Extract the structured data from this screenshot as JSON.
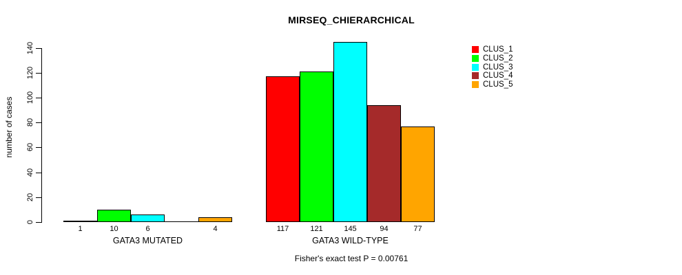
{
  "chart_data": {
    "type": "bar",
    "title": "MIRSEQ_CHIERARCHICAL",
    "ylabel": "number of cases",
    "xlabel": "",
    "categories": [
      "GATA3 MUTATED",
      "GATA3 WILD-TYPE"
    ],
    "series": [
      {
        "name": "CLUS_1",
        "color": "#FF0000",
        "values": [
          1,
          117
        ]
      },
      {
        "name": "CLUS_2",
        "color": "#00FF00",
        "values": [
          10,
          121
        ]
      },
      {
        "name": "CLUS_3",
        "color": "#00FFFF",
        "values": [
          6,
          145
        ]
      },
      {
        "name": "CLUS_4",
        "color": "#A52A2A",
        "values": [
          0,
          94
        ]
      },
      {
        "name": "CLUS_5",
        "color": "#FFA500",
        "values": [
          4,
          77
        ]
      }
    ],
    "bar_value_labels": [
      [
        "1",
        "10",
        "6",
        "",
        "4"
      ],
      [
        "117",
        "121",
        "145",
        "94",
        "77"
      ]
    ],
    "yticks": [
      0,
      20,
      40,
      60,
      80,
      100,
      120,
      140
    ],
    "ylim": [
      0,
      145
    ],
    "grid": false,
    "legend_position": "right-top",
    "legend_entries": [
      "CLUS_1",
      "CLUS_2",
      "CLUS_3",
      "CLUS_4",
      "CLUS_5"
    ],
    "annotation": "Fisher's exact test P = 0.00761",
    "colors": {
      "background": "#FFFFFF",
      "axis": "#000000",
      "text": "#000000",
      "bar_border": "#000000"
    }
  }
}
